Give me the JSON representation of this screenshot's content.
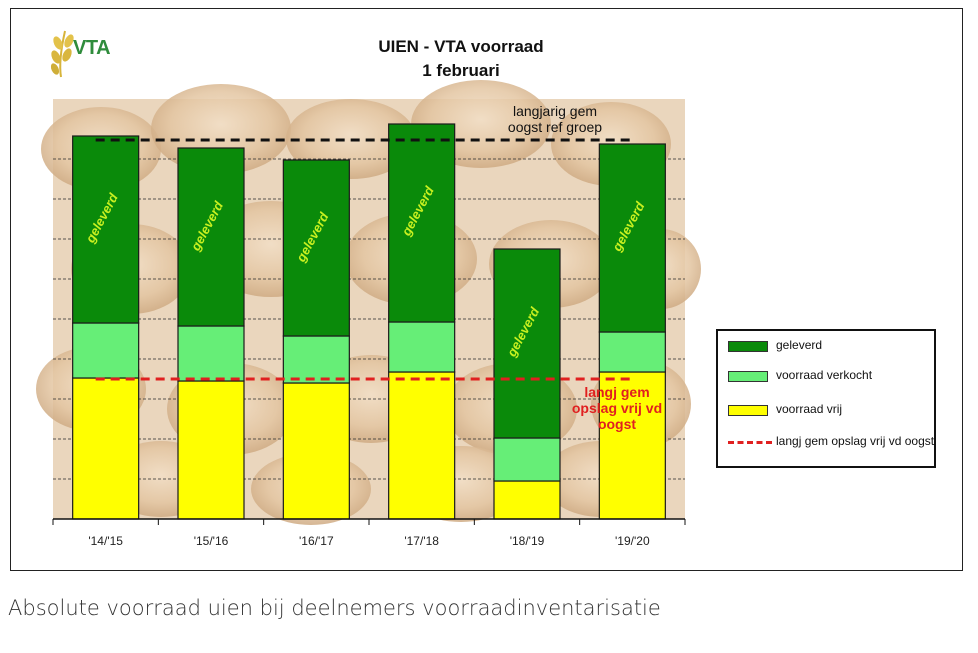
{
  "logo": {
    "text": "VTA"
  },
  "chart_data": {
    "type": "bar",
    "stacked": true,
    "title": "UIEN - VTA voorraad",
    "subtitle": "1 februari",
    "categories": [
      "'14/'15",
      "'15/'16",
      "'16/'17",
      "'17/'18",
      "'18/'19",
      "'19/'20"
    ],
    "series": [
      {
        "name": "voorraad vrij",
        "color": "#ffff00",
        "values": [
          141,
          138,
          136,
          147,
          38,
          147
        ]
      },
      {
        "name": "voorraad verkocht",
        "color": "#66ee77",
        "values": [
          55,
          55,
          47,
          50,
          43,
          40
        ]
      },
      {
        "name": "geleverd",
        "color": "#0a8a0a",
        "values": [
          187,
          178,
          176,
          198,
          189,
          188
        ]
      }
    ],
    "bar_label": "geleverd",
    "reference_lines": [
      {
        "name": "langjarig gem oogst ref groep",
        "value": 379,
        "color": "#111111",
        "style": "dashed",
        "annotation_line1": "langjarig gem",
        "annotation_line2": "oogst ref groep"
      },
      {
        "name": "langj gem opslag vrij vd oogst",
        "value": 140,
        "color": "#e02020",
        "style": "dashed",
        "annotation_line1": "langj gem",
        "annotation_line2": "opslag vrij vd",
        "annotation_line3": "oogst"
      }
    ],
    "ylim": [
      0,
      420
    ],
    "grid": true,
    "legend_position": "right"
  },
  "legend": {
    "items": [
      {
        "label": "geleverd",
        "color": "#0a8a0a",
        "kind": "box"
      },
      {
        "label": "voorraad verkocht",
        "color": "#66ee77",
        "kind": "box"
      },
      {
        "label": "voorraad vrij",
        "color": "#ffff00",
        "kind": "box"
      },
      {
        "label": "langj gem opslag vrij vd oogst",
        "color": "#e02020",
        "kind": "dashed-line"
      }
    ]
  },
  "caption": "Absolute voorraad uien bij deelnemers voorraadinventarisatie"
}
